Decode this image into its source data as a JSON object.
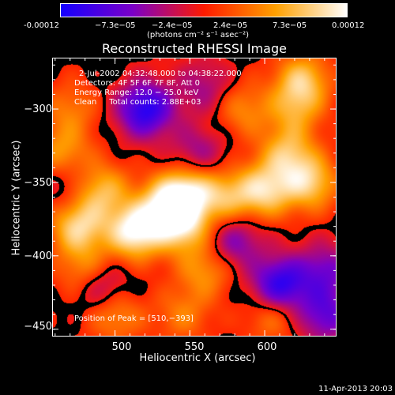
{
  "colorbar": {
    "tick_labels": [
      "-0.00012",
      "−7.3e−05",
      "−2.4e−05",
      "2.4e−05",
      "7.3e−05",
      "0.00012"
    ],
    "units_label": "(photons cm⁻² s⁻¹ asec⁻²)",
    "range": [
      -0.00012,
      0.00012
    ],
    "colormap": [
      "#1400ff",
      "#7a00c8",
      "#ff1a00",
      "#ffa000",
      "#ffffff"
    ]
  },
  "chart_data": {
    "type": "heatmap",
    "title": "Reconstructed RHESSI Image",
    "xlabel": "Heliocentric X (arcsec)",
    "ylabel": "Heliocentric Y (arcsec)",
    "xlim": [
      458,
      648
    ],
    "ylim": [
      -455,
      -265
    ],
    "x_ticks": [
      500,
      550,
      600
    ],
    "x_tick_labels": [
      "500",
      "550",
      "600"
    ],
    "y_ticks": [
      -300,
      -350,
      -400,
      -450
    ],
    "y_tick_labels": [
      "−300",
      "−350",
      "−400",
      "−450"
    ],
    "peak": [
      510,
      -393
    ],
    "blobs": [
      {
        "x": 513,
        "y": -383,
        "amp": 1.0
      },
      {
        "x": 535,
        "y": -365,
        "amp": 0.85
      },
      {
        "x": 475,
        "y": -380,
        "amp": 0.75
      },
      {
        "x": 545,
        "y": -380,
        "amp": 0.7
      },
      {
        "x": 550,
        "y": -355,
        "amp": 0.7
      },
      {
        "x": 490,
        "y": -355,
        "amp": 0.65
      },
      {
        "x": 575,
        "y": -360,
        "amp": 0.55
      },
      {
        "x": 600,
        "y": -355,
        "amp": 0.75
      },
      {
        "x": 630,
        "y": -350,
        "amp": 0.7
      },
      {
        "x": 615,
        "y": -330,
        "amp": 0.6
      },
      {
        "x": 465,
        "y": -330,
        "amp": 0.5
      },
      {
        "x": 480,
        "y": -410,
        "amp": 0.5
      },
      {
        "x": 625,
        "y": -280,
        "amp": 0.65
      },
      {
        "x": 620,
        "y": -300,
        "amp": 0.45
      },
      {
        "x": 585,
        "y": -300,
        "amp": 0.4
      },
      {
        "x": 500,
        "y": -440,
        "amp": 0.45
      },
      {
        "x": 560,
        "y": -410,
        "amp": 0.45
      },
      {
        "x": 605,
        "y": -440,
        "amp": 0.4
      },
      {
        "x": 545,
        "y": -440,
        "amp": 0.35
      },
      {
        "x": 470,
        "y": -300,
        "amp": 0.35
      },
      {
        "x": 520,
        "y": -300,
        "amp": -0.9
      },
      {
        "x": 610,
        "y": -420,
        "amp": -0.9
      },
      {
        "x": 490,
        "y": -420,
        "amp": -0.5
      },
      {
        "x": 580,
        "y": -390,
        "amp": -0.5
      },
      {
        "x": 555,
        "y": -330,
        "amp": -0.4
      },
      {
        "x": 640,
        "y": -410,
        "amp": -0.5
      },
      {
        "x": 470,
        "y": -350,
        "amp": -0.3
      },
      {
        "x": 640,
        "y": -440,
        "amp": -0.6
      },
      {
        "x": 560,
        "y": -285,
        "amp": -0.35
      }
    ]
  },
  "info": {
    "time_range": "2-Jul-2002 04:32:48.000 to 04:38:22.000",
    "detectors": "Detectors: 4F 5F 6F 7F 8F, Att 0",
    "energy": "Energy Range: 12.0 − 25.0 keV",
    "clean": "Clean     Total counts: 2.88E+03",
    "peak": "Position of Peak = [510,−393]"
  },
  "timestamp": "11-Apr-2013 20:03"
}
